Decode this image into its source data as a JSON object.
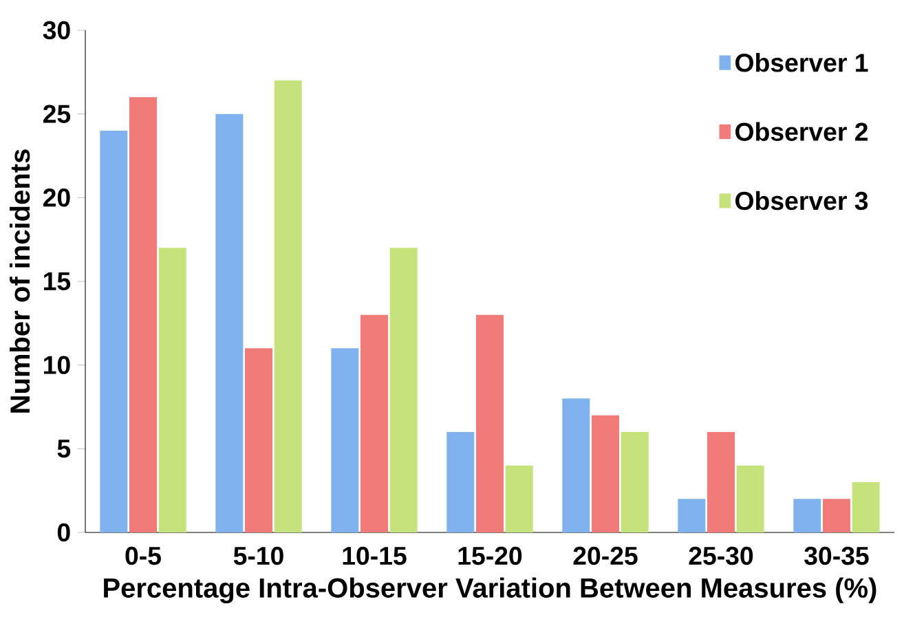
{
  "chart_data": {
    "type": "bar",
    "xlabel": "Percentage Intra-Observer Variation Between Measures (%)",
    "ylabel": "Number of incidents",
    "categories": [
      "0-5",
      "5-10",
      "10-15",
      "15-20",
      "20-25",
      "25-30",
      "30-35"
    ],
    "series": [
      {
        "name": "Observer 1",
        "color": "#7fb2ee",
        "values": [
          24,
          25,
          11,
          6,
          8,
          2,
          2
        ]
      },
      {
        "name": "Observer 2",
        "color": "#f07b78",
        "values": [
          26,
          11,
          13,
          13,
          7,
          6,
          2
        ]
      },
      {
        "name": "Observer 3",
        "color": "#c5e37a",
        "values": [
          17,
          27,
          17,
          4,
          6,
          4,
          3
        ]
      }
    ],
    "ylim": [
      0,
      30
    ],
    "yticks": [
      0,
      5,
      10,
      15,
      20,
      25,
      30
    ],
    "grid": false,
    "legend": "top right"
  }
}
